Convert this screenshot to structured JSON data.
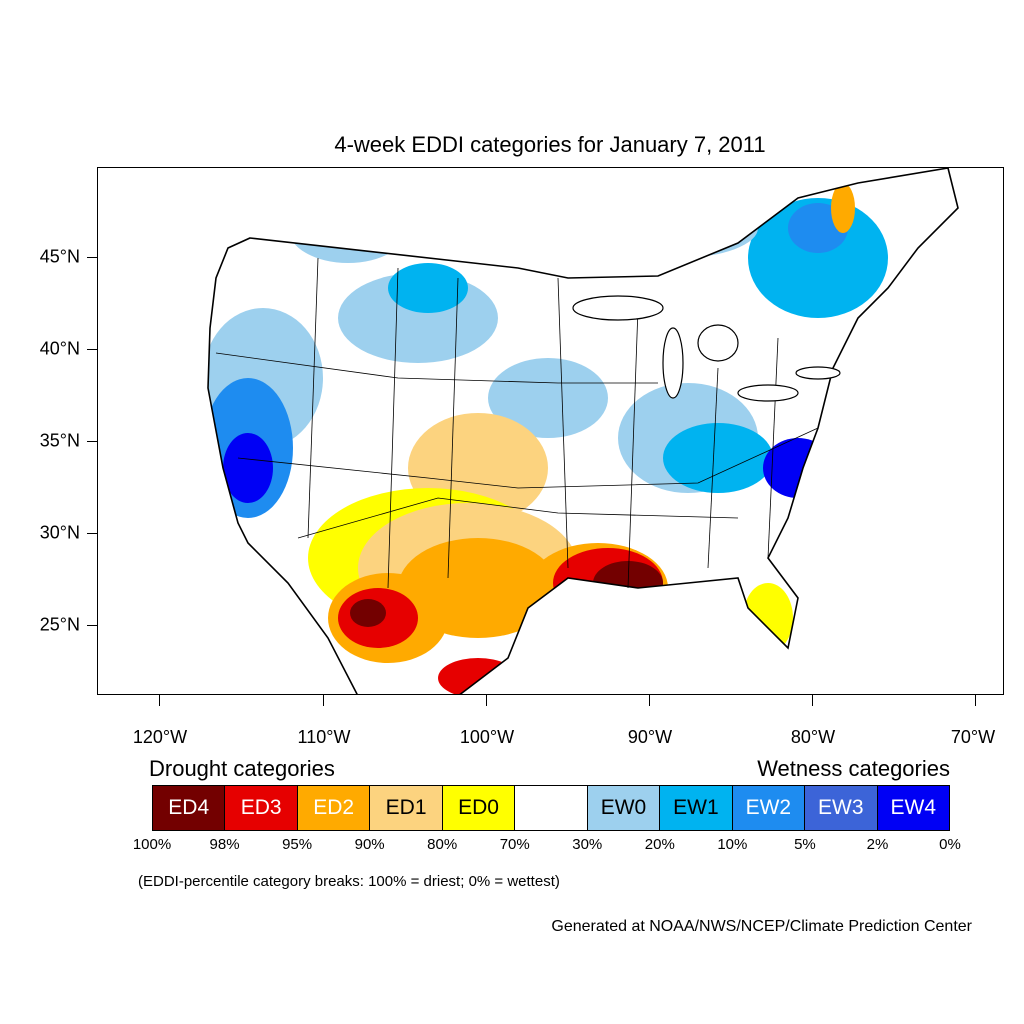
{
  "title": "4-week EDDI categories for January 7, 2011",
  "axes": {
    "lat_labels": [
      "45°N",
      "40°N",
      "35°N",
      "30°N",
      "25°N"
    ],
    "lon_labels": [
      "120°W",
      "110°W",
      "100°W",
      "90°W",
      "80°W",
      "70°W"
    ]
  },
  "legend": {
    "drought_heading": "Drought categories",
    "wetness_heading": "Wetness categories",
    "cells": [
      {
        "label": "ED4",
        "color": "#730000",
        "text_color": "#ffffff"
      },
      {
        "label": "ED3",
        "color": "#e60000",
        "text_color": "#ffffff"
      },
      {
        "label": "ED2",
        "color": "#ffaa00",
        "text_color": "#ffffff"
      },
      {
        "label": "ED1",
        "color": "#fcd37f",
        "text_color": "#000000"
      },
      {
        "label": "ED0",
        "color": "#ffff00",
        "text_color": "#000000"
      },
      {
        "label": "",
        "color": "#ffffff",
        "text_color": "#000000"
      },
      {
        "label": "EW0",
        "color": "#9dd0ee",
        "text_color": "#000000"
      },
      {
        "label": "EW1",
        "color": "#00b3f0",
        "text_color": "#000000"
      },
      {
        "label": "EW2",
        "color": "#1e8cf0",
        "text_color": "#ffffff"
      },
      {
        "label": "EW3",
        "color": "#3c64d8",
        "text_color": "#ffffff"
      },
      {
        "label": "EW4",
        "color": "#0000f5",
        "text_color": "#ffffff"
      }
    ],
    "breaks": [
      "100%",
      "98%",
      "95%",
      "90%",
      "80%",
      "70%",
      "30%",
      "20%",
      "10%",
      "5%",
      "2%",
      "0%"
    ]
  },
  "note": "(EDDI-percentile category breaks: 100% = driest; 0% = wettest)",
  "credit": "Generated at NOAA/NWS/NCEP/Climate Prediction Center"
}
